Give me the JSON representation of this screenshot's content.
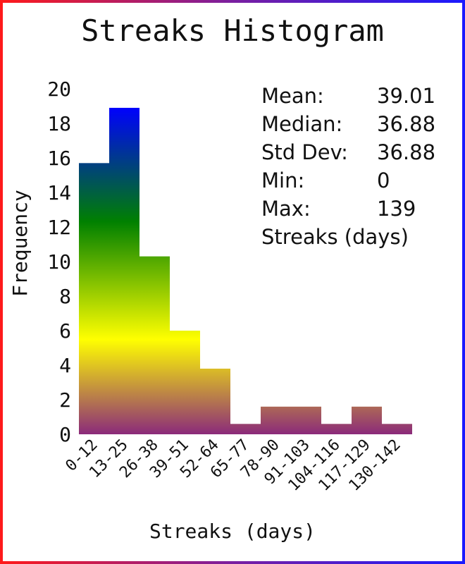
{
  "chart_data": {
    "type": "bar",
    "title": "Streaks Histogram",
    "xlabel": "Streaks (days)",
    "ylabel": "Frequency",
    "categories": [
      "0-12",
      "13-25",
      "26-38",
      "39-51",
      "52-64",
      "65-77",
      "78-90",
      "91-103",
      "104-116",
      "117-129",
      "130-142"
    ],
    "values": [
      15.7,
      18.9,
      10.3,
      6.0,
      3.8,
      0.6,
      1.6,
      1.6,
      0.6,
      1.6,
      0.6
    ],
    "ylim": [
      0,
      20
    ],
    "yticks": [
      "0",
      "2",
      "4",
      "6",
      "8",
      "10",
      "12",
      "14",
      "16",
      "18",
      "20"
    ],
    "grid": false,
    "bar_gradient": [
      "#0000ff",
      "#008000",
      "#ffff00",
      "#8b2a7a"
    ],
    "stats": [
      {
        "label": "Mean:",
        "value": "39.01"
      },
      {
        "label": "Median:",
        "value": "36.88"
      },
      {
        "label": "Std Dev:",
        "value": "36.88"
      },
      {
        "label": "Min:",
        "value": "0"
      },
      {
        "label": "Max:",
        "value": "139"
      }
    ],
    "stats_footer": "Streaks (days)"
  }
}
